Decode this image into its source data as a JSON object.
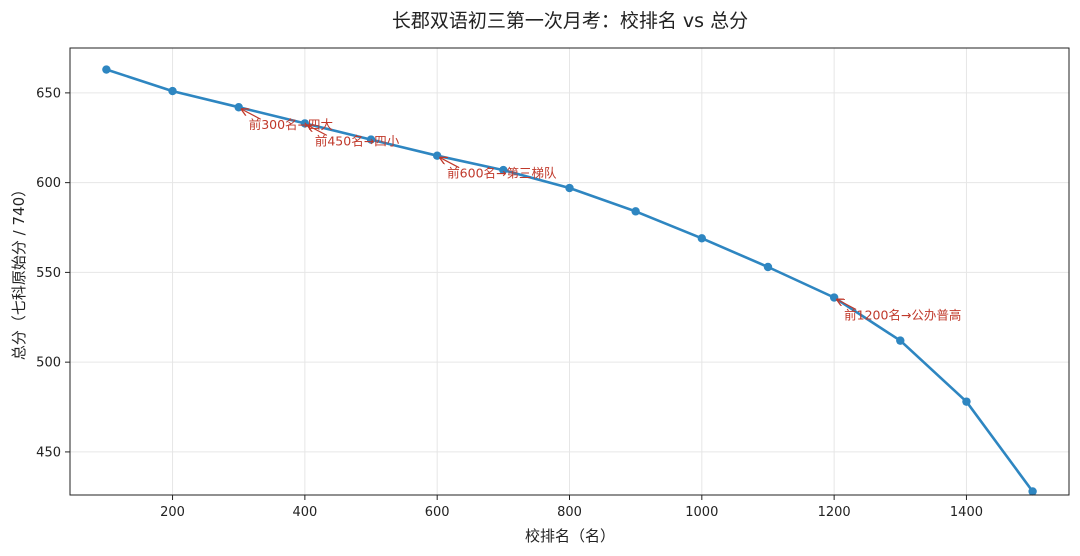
{
  "chart_data": {
    "type": "line",
    "title": "长郡双语初三第一次月考：校排名 vs 总分",
    "xlabel": "校排名（名）",
    "ylabel": "总分（七科原始分 / 740）",
    "xlim": [
      45,
      1555
    ],
    "ylim": [
      426,
      675
    ],
    "xticks": [
      200,
      400,
      600,
      800,
      1000,
      1200,
      1400
    ],
    "yticks": [
      450,
      500,
      550,
      600,
      650
    ],
    "grid": true,
    "series": [
      {
        "x": [
          100,
          200,
          300,
          400,
          500,
          600,
          700,
          800,
          900,
          1000,
          1100,
          1200,
          1300,
          1400,
          1500
        ],
        "y": [
          663,
          651,
          642,
          633,
          624,
          615,
          607,
          597,
          584,
          569,
          553,
          536,
          512,
          478,
          428
        ],
        "color": "#2e86c1"
      }
    ],
    "annotations": [
      {
        "text": "前300名→四大",
        "x": 300,
        "y": 642
      },
      {
        "text": "前450名→四小",
        "x": 400,
        "y": 633
      },
      {
        "text": "前600名→第三梯队",
        "x": 600,
        "y": 615
      },
      {
        "text": "前1200名→公办普高",
        "x": 1200,
        "y": 536
      }
    ],
    "annotation_color": "#c0392b"
  }
}
